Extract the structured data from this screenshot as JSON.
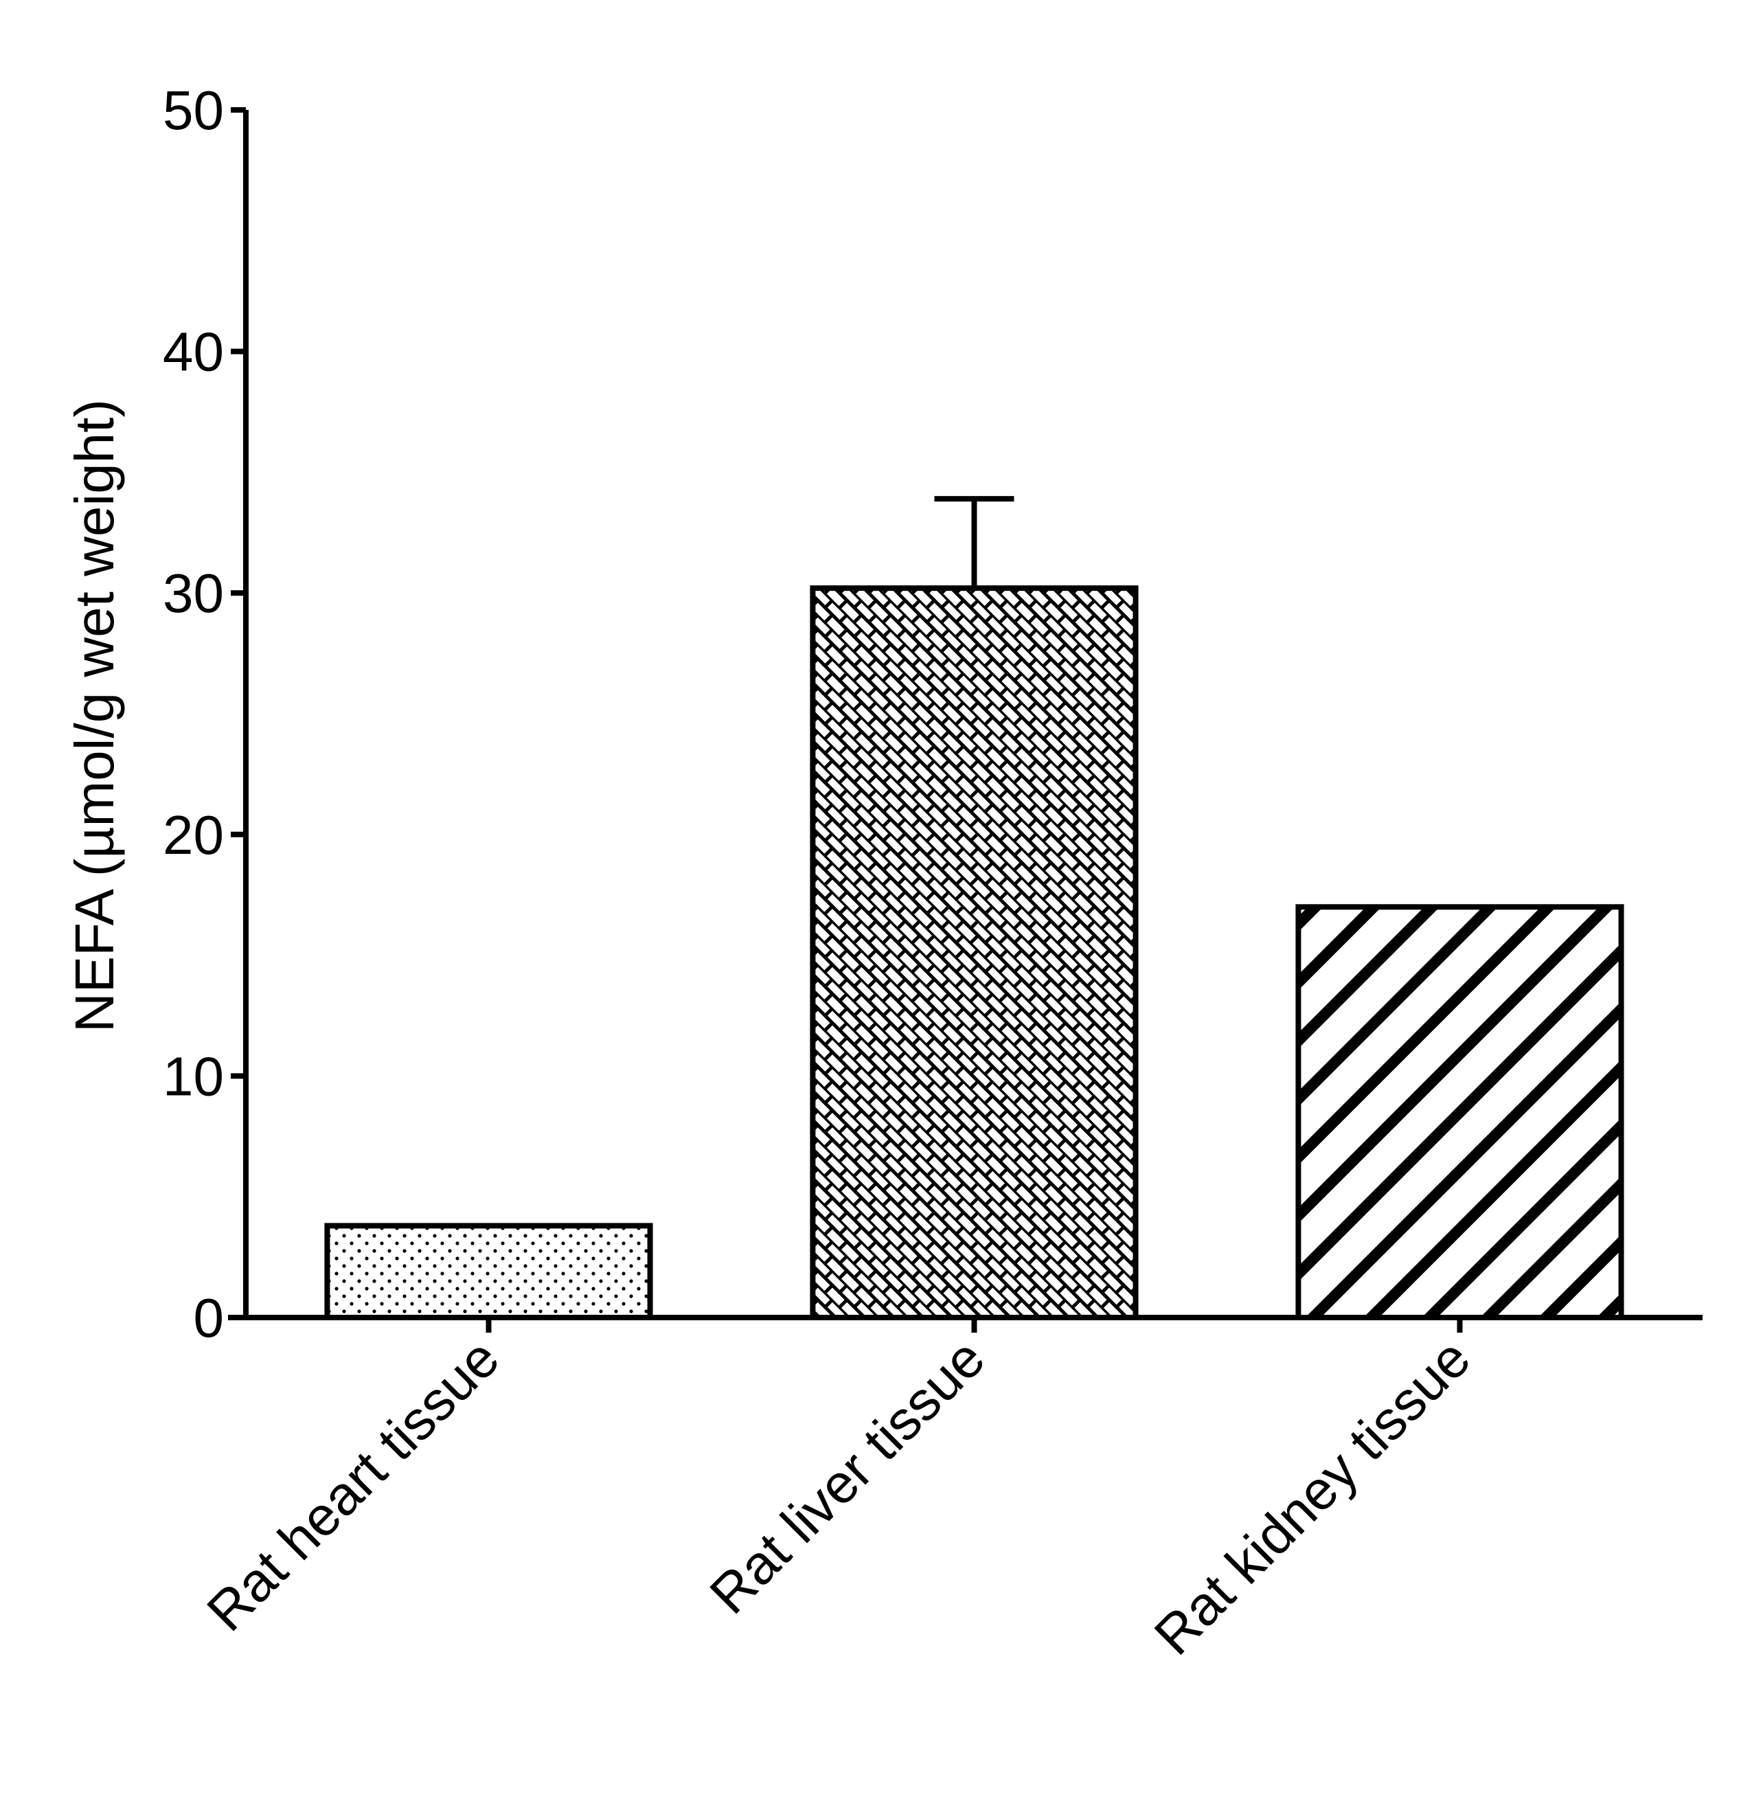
{
  "chart_data": {
    "type": "bar",
    "y_label": "NEFA (µmol/g wet weight)",
    "categories": [
      "Rat heart tissue",
      "Rat liver tissue",
      "Rat kidney tissue"
    ],
    "values": [
      3.8,
      30.2,
      17.0
    ],
    "errors": [
      null,
      3.7,
      null
    ],
    "patterns": [
      "dots",
      "brick",
      "diagonal"
    ],
    "color": "#000000",
    "ylim": [
      0,
      50
    ],
    "yticks": [
      0,
      10,
      20,
      30,
      40,
      50
    ],
    "grid": false
  }
}
